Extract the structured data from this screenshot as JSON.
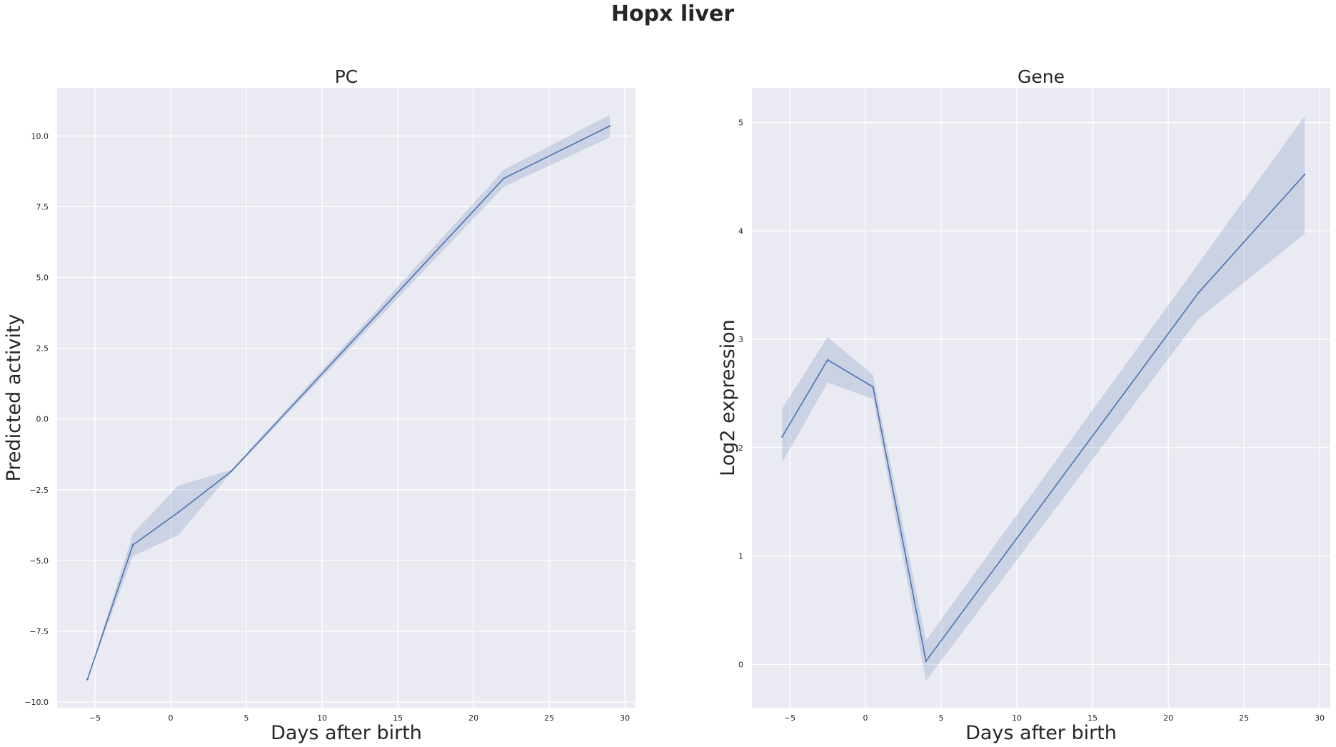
{
  "figure": {
    "title": "Hopx liver"
  },
  "colors": {
    "line": "#4c72b0",
    "band": "#4c72b0",
    "axes_bg": "#eaeaf2",
    "grid": "#ffffff",
    "text": "#262626"
  },
  "chart_data": [
    {
      "type": "line",
      "title": "PC",
      "xlabel": "Days after birth",
      "ylabel": "Predicted activity",
      "xlim": [
        -7.5,
        30.7
      ],
      "ylim": [
        -10.2,
        11.7
      ],
      "xticks": [
        -5,
        0,
        5,
        10,
        15,
        20,
        25,
        30
      ],
      "xtick_labels": [
        "−5",
        "0",
        "5",
        "10",
        "15",
        "20",
        "25",
        "30"
      ],
      "yticks": [
        -10.0,
        -7.5,
        -5.0,
        -2.5,
        0.0,
        2.5,
        5.0,
        7.5,
        10.0
      ],
      "ytick_labels": [
        "−10.0",
        "−7.5",
        "−5.0",
        "−2.5",
        "0.0",
        "2.5",
        "5.0",
        "7.5",
        "10.0"
      ],
      "grid": true,
      "x": [
        -5.5,
        -2.5,
        0.5,
        4,
        22,
        29
      ],
      "y": [
        -9.2,
        -4.45,
        -3.3,
        -1.85,
        8.5,
        10.35
      ],
      "ci_lower": [
        -9.2,
        -4.85,
        -4.1,
        -1.9,
        8.2,
        9.95
      ],
      "ci_upper": [
        -9.2,
        -4.05,
        -2.35,
        -1.8,
        8.8,
        10.75
      ]
    },
    {
      "type": "line",
      "title": "Gene",
      "xlabel": "Days after birth",
      "ylabel": "Log2 expression",
      "xlim": [
        -7.5,
        30.7
      ],
      "ylim": [
        -0.4,
        5.32
      ],
      "xticks": [
        -5,
        0,
        5,
        10,
        15,
        20,
        25,
        30
      ],
      "xtick_labels": [
        "−5",
        "0",
        "5",
        "10",
        "15",
        "20",
        "25",
        "30"
      ],
      "yticks": [
        0,
        1,
        2,
        3,
        4,
        5
      ],
      "ytick_labels": [
        "0",
        "1",
        "2",
        "3",
        "4",
        "5"
      ],
      "grid": true,
      "x": [
        -5.5,
        -2.5,
        0.5,
        4,
        22,
        29
      ],
      "y": [
        2.1,
        2.81,
        2.56,
        0.03,
        3.43,
        4.52
      ],
      "ci_lower": [
        1.86,
        2.6,
        2.45,
        -0.15,
        3.19,
        3.97
      ],
      "ci_upper": [
        2.36,
        3.02,
        2.67,
        0.22,
        3.7,
        5.06
      ]
    }
  ]
}
